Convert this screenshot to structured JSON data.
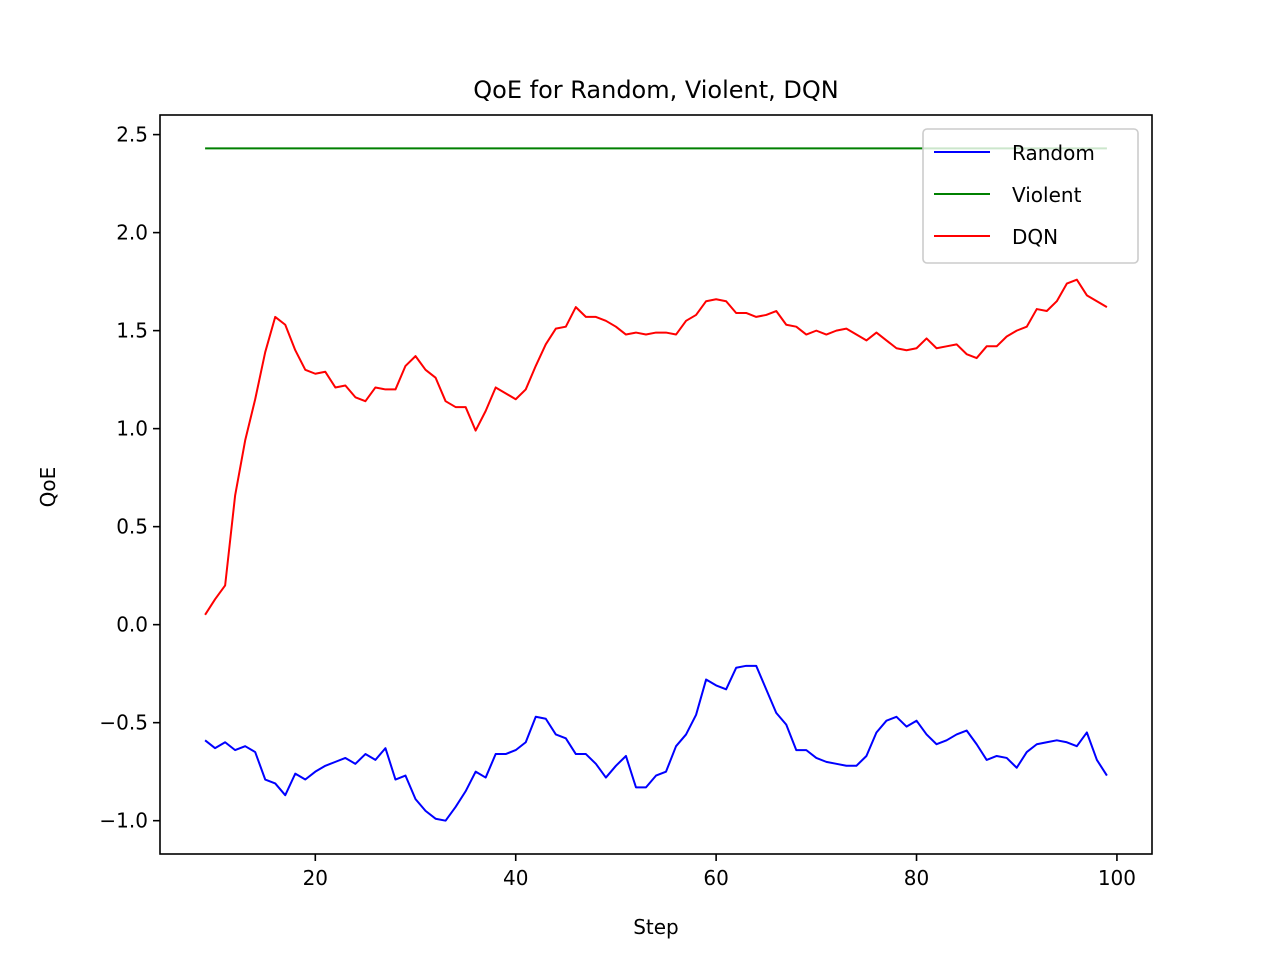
{
  "chart_data": {
    "type": "line",
    "title": "QoE for Random, Violent, DQN",
    "xlabel": "Step",
    "ylabel": "QoE",
    "xlim": [
      4.5,
      103.5
    ],
    "ylim": [
      -1.17,
      2.6
    ],
    "xticks": [
      20,
      40,
      60,
      80,
      100
    ],
    "xtick_labels": [
      "20",
      "40",
      "60",
      "80",
      "100"
    ],
    "yticks": [
      -1.0,
      -0.5,
      0.0,
      0.5,
      1.0,
      1.5,
      2.0,
      2.5
    ],
    "ytick_labels": [
      "−1.0",
      "−0.5",
      "0.0",
      "0.5",
      "1.0",
      "1.5",
      "2.0",
      "2.5"
    ],
    "grid": false,
    "legend_position": "top-right",
    "x": [
      9,
      10,
      11,
      12,
      13,
      14,
      15,
      16,
      17,
      18,
      19,
      20,
      21,
      22,
      23,
      24,
      25,
      26,
      27,
      28,
      29,
      30,
      31,
      32,
      33,
      34,
      35,
      36,
      37,
      38,
      39,
      40,
      41,
      42,
      43,
      44,
      45,
      46,
      47,
      48,
      49,
      50,
      51,
      52,
      53,
      54,
      55,
      56,
      57,
      58,
      59,
      60,
      61,
      62,
      63,
      64,
      65,
      66,
      67,
      68,
      69,
      70,
      71,
      72,
      73,
      74,
      75,
      76,
      77,
      78,
      79,
      80,
      81,
      82,
      83,
      84,
      85,
      86,
      87,
      88,
      89,
      90,
      91,
      92,
      93,
      94,
      95,
      96,
      97,
      98,
      99
    ],
    "series": [
      {
        "name": "Random",
        "color": "#0000ff",
        "values": [
          -0.59,
          -0.63,
          -0.6,
          -0.64,
          -0.62,
          -0.65,
          -0.79,
          -0.81,
          -0.87,
          -0.76,
          -0.79,
          -0.75,
          -0.72,
          -0.7,
          -0.68,
          -0.71,
          -0.66,
          -0.69,
          -0.63,
          -0.79,
          -0.77,
          -0.89,
          -0.95,
          -0.99,
          -1.0,
          -0.93,
          -0.85,
          -0.75,
          -0.78,
          -0.66,
          -0.66,
          -0.64,
          -0.6,
          -0.47,
          -0.48,
          -0.56,
          -0.58,
          -0.66,
          -0.66,
          -0.71,
          -0.78,
          -0.72,
          -0.67,
          -0.83,
          -0.83,
          -0.77,
          -0.75,
          -0.62,
          -0.56,
          -0.46,
          -0.28,
          -0.31,
          -0.33,
          -0.22,
          -0.21,
          -0.21,
          -0.33,
          -0.45,
          -0.51,
          -0.64,
          -0.64,
          -0.68,
          -0.7,
          -0.71,
          -0.72,
          -0.72,
          -0.67,
          -0.55,
          -0.49,
          -0.47,
          -0.52,
          -0.49,
          -0.56,
          -0.61,
          -0.59,
          -0.56,
          -0.54,
          -0.61,
          -0.69,
          -0.67,
          -0.68,
          -0.73,
          -0.65,
          -0.61,
          -0.6,
          -0.59,
          -0.6,
          -0.62,
          -0.55,
          -0.69,
          -0.77
        ]
      },
      {
        "name": "Violent",
        "color": "#008000",
        "values": [
          2.43,
          2.43,
          2.43,
          2.43,
          2.43,
          2.43,
          2.43,
          2.43,
          2.43,
          2.43,
          2.43,
          2.43,
          2.43,
          2.43,
          2.43,
          2.43,
          2.43,
          2.43,
          2.43,
          2.43,
          2.43,
          2.43,
          2.43,
          2.43,
          2.43,
          2.43,
          2.43,
          2.43,
          2.43,
          2.43,
          2.43,
          2.43,
          2.43,
          2.43,
          2.43,
          2.43,
          2.43,
          2.43,
          2.43,
          2.43,
          2.43,
          2.43,
          2.43,
          2.43,
          2.43,
          2.43,
          2.43,
          2.43,
          2.43,
          2.43,
          2.43,
          2.43,
          2.43,
          2.43,
          2.43,
          2.43,
          2.43,
          2.43,
          2.43,
          2.43,
          2.43,
          2.43,
          2.43,
          2.43,
          2.43,
          2.43,
          2.43,
          2.43,
          2.43,
          2.43,
          2.43,
          2.43,
          2.43,
          2.43,
          2.43,
          2.43,
          2.43,
          2.43,
          2.43,
          2.43,
          2.43,
          2.43,
          2.43,
          2.43,
          2.43,
          2.43,
          2.43,
          2.43,
          2.43,
          2.43,
          2.43
        ]
      },
      {
        "name": "DQN",
        "color": "#ff0000",
        "values": [
          0.05,
          0.13,
          0.2,
          0.66,
          0.94,
          1.15,
          1.39,
          1.57,
          1.53,
          1.4,
          1.3,
          1.28,
          1.29,
          1.21,
          1.22,
          1.16,
          1.14,
          1.21,
          1.2,
          1.2,
          1.32,
          1.37,
          1.3,
          1.26,
          1.14,
          1.11,
          1.11,
          0.99,
          1.09,
          1.21,
          1.18,
          1.15,
          1.2,
          1.32,
          1.43,
          1.51,
          1.52,
          1.62,
          1.57,
          1.57,
          1.55,
          1.52,
          1.48,
          1.49,
          1.48,
          1.49,
          1.49,
          1.48,
          1.55,
          1.58,
          1.65,
          1.66,
          1.65,
          1.59,
          1.59,
          1.57,
          1.58,
          1.6,
          1.53,
          1.52,
          1.48,
          1.5,
          1.48,
          1.5,
          1.51,
          1.48,
          1.45,
          1.49,
          1.45,
          1.41,
          1.4,
          1.41,
          1.46,
          1.41,
          1.42,
          1.43,
          1.38,
          1.36,
          1.42,
          1.42,
          1.47,
          1.5,
          1.52,
          1.61,
          1.6,
          1.65,
          1.74,
          1.76,
          1.68,
          1.65,
          1.62
        ]
      }
    ]
  }
}
